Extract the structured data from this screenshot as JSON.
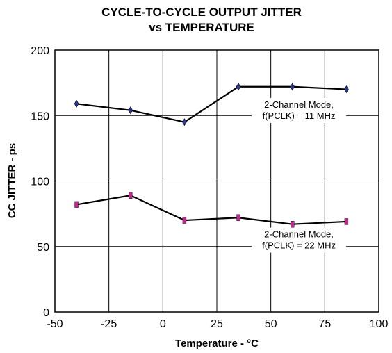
{
  "chart_data": {
    "type": "line",
    "title_lines": [
      "CYCLE-TO-CYCLE OUTPUT JITTER",
      "vs TEMPERATURE"
    ],
    "xlabel": "Temperature - °C",
    "ylabel": "CC JITTER - ps",
    "xlim": [
      -50,
      100
    ],
    "ylim": [
      0,
      200
    ],
    "x_ticks": [
      -50,
      -25,
      0,
      25,
      50,
      75,
      100
    ],
    "y_ticks": [
      0,
      50,
      100,
      150,
      200
    ],
    "grid": true,
    "series": [
      {
        "x": [
          -40,
          -15,
          10,
          35,
          60,
          85
        ],
        "y": [
          159,
          154,
          145,
          172,
          172,
          170
        ],
        "marker": "diamond",
        "marker_color": "#2b3a9a",
        "annotation_lines": [
          "2-Channel Mode,",
          "f(PCLK) = 11 MHz"
        ],
        "annotation_anchor": [
          63,
          156
        ]
      },
      {
        "x": [
          -40,
          -15,
          10,
          35,
          60,
          85
        ],
        "y": [
          82,
          89,
          70,
          72,
          67,
          69
        ],
        "marker": "bar",
        "marker_color": "#c0288c",
        "annotation_lines": [
          "2-Channel Mode,",
          "f(PCLK) = 22 MHz"
        ],
        "annotation_anchor": [
          63,
          57
        ]
      }
    ]
  }
}
